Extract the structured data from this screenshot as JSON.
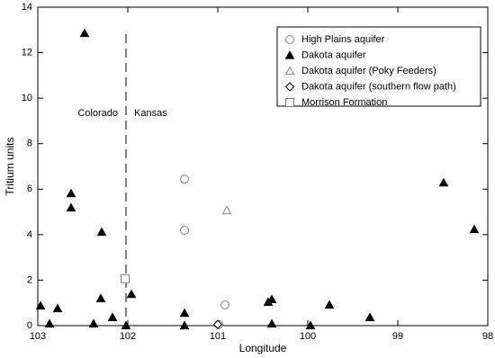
{
  "chart_data": {
    "type": "scatter",
    "x_label": "Longitude",
    "y_label": "Tritium units",
    "xlim": [
      103,
      98
    ],
    "ylim": [
      0,
      14
    ],
    "xticks": [
      103,
      102,
      101,
      100,
      99,
      98
    ],
    "yticks": [
      0,
      2,
      4,
      6,
      8,
      10,
      12,
      14
    ],
    "legend": "upper right",
    "vline": 102.02,
    "annotations": [
      "Colorado",
      "Kansas"
    ],
    "series": [
      {
        "name": "High Plains aquifer",
        "marker": "circle",
        "color": "#808080",
        "x": [
          101.37,
          101.37,
          100.92,
          100.99
        ],
        "values": [
          6.44,
          4.19,
          0.91,
          0.05
        ]
      },
      {
        "name": "Dakota aquifer",
        "marker": "triangle-filled",
        "color": "#000000",
        "x": [
          102.97,
          102.87,
          102.78,
          102.63,
          102.63,
          102.48,
          102.38,
          102.29,
          102.3,
          102.17,
          102.02,
          101.96,
          101.37,
          101.37,
          100.44,
          100.4,
          100.4,
          99.97,
          99.76,
          99.31,
          98.49,
          98.15
        ],
        "values": [
          0.87,
          0.08,
          0.75,
          5.81,
          5.18,
          12.85,
          0.08,
          4.11,
          1.19,
          0.36,
          0.0,
          1.38,
          0.55,
          0.0,
          1.03,
          1.15,
          0.08,
          0.0,
          0.91,
          0.36,
          6.28,
          4.23
        ]
      },
      {
        "name": "Dakota aquifer (Poky Feeders)",
        "marker": "triangle",
        "color": "#808080",
        "x": [
          100.9
        ],
        "values": [
          5.06
        ]
      },
      {
        "name": "Dakota aquifer (southern flow path)",
        "marker": "diamond",
        "color": "#000000",
        "x": [
          101.0
        ],
        "values": [
          0.05
        ]
      },
      {
        "name": "Morrison Formation",
        "marker": "square",
        "color": "#808080",
        "x": [
          102.03
        ],
        "values": [
          2.06
        ]
      }
    ]
  }
}
